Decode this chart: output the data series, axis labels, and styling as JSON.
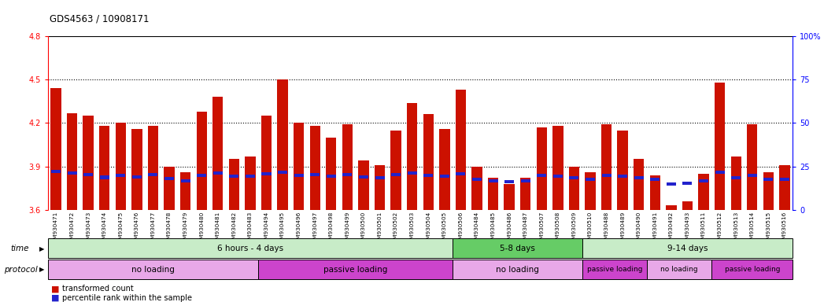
{
  "title": "GDS4563 / 10908171",
  "samples": [
    "GSM930471",
    "GSM930472",
    "GSM930473",
    "GSM930474",
    "GSM930475",
    "GSM930476",
    "GSM930477",
    "GSM930478",
    "GSM930479",
    "GSM930480",
    "GSM930481",
    "GSM930482",
    "GSM930483",
    "GSM930494",
    "GSM930495",
    "GSM930496",
    "GSM930497",
    "GSM930498",
    "GSM930499",
    "GSM930500",
    "GSM930501",
    "GSM930502",
    "GSM930503",
    "GSM930504",
    "GSM930505",
    "GSM930506",
    "GSM930484",
    "GSM930485",
    "GSM930486",
    "GSM930487",
    "GSM930507",
    "GSM930508",
    "GSM930509",
    "GSM930510",
    "GSM930488",
    "GSM930489",
    "GSM930490",
    "GSM930491",
    "GSM930492",
    "GSM930493",
    "GSM930511",
    "GSM930512",
    "GSM930513",
    "GSM930514",
    "GSM930515",
    "GSM930516"
  ],
  "red_values": [
    4.44,
    4.27,
    4.25,
    4.18,
    4.2,
    4.16,
    4.18,
    3.9,
    3.86,
    4.28,
    4.38,
    3.95,
    3.97,
    4.25,
    4.5,
    4.2,
    4.18,
    4.1,
    4.19,
    3.94,
    3.91,
    4.15,
    4.34,
    4.26,
    4.16,
    4.43,
    3.9,
    3.82,
    3.78,
    3.82,
    4.17,
    4.18,
    3.9,
    3.86,
    4.19,
    4.15,
    3.95,
    3.84,
    3.63,
    3.66,
    3.85,
    4.48,
    3.97,
    4.19,
    3.86,
    3.91
  ],
  "blue_values": [
    3.865,
    3.855,
    3.845,
    3.825,
    3.84,
    3.83,
    3.845,
    3.815,
    3.8,
    3.84,
    3.855,
    3.835,
    3.835,
    3.85,
    3.86,
    3.84,
    3.845,
    3.835,
    3.845,
    3.83,
    3.82,
    3.845,
    3.855,
    3.84,
    3.835,
    3.85,
    3.812,
    3.8,
    3.795,
    3.8,
    3.84,
    3.835,
    3.82,
    3.81,
    3.84,
    3.835,
    3.82,
    3.81,
    3.78,
    3.782,
    3.8,
    3.86,
    3.82,
    3.84,
    3.81,
    3.81
  ],
  "y_min": 3.6,
  "y_max": 4.8,
  "y_ticks": [
    3.6,
    3.9,
    4.2,
    4.5,
    4.8
  ],
  "y_right_ticks": [
    0,
    25,
    50,
    75,
    100
  ],
  "dotted_lines": [
    3.9,
    4.2,
    4.5
  ],
  "time_groups": [
    {
      "label": "6 hours - 4 days",
      "start": 0,
      "end": 25,
      "color": "#c8ecc8"
    },
    {
      "label": "5-8 days",
      "start": 25,
      "end": 33,
      "color": "#66cc66"
    },
    {
      "label": "9-14 days",
      "start": 33,
      "end": 46,
      "color": "#c8ecc8"
    }
  ],
  "protocol_groups": [
    {
      "label": "no loading",
      "start": 0,
      "end": 13,
      "color": "#e8a8e8"
    },
    {
      "label": "passive loading",
      "start": 13,
      "end": 25,
      "color": "#cc44cc"
    },
    {
      "label": "no loading",
      "start": 25,
      "end": 33,
      "color": "#e8a8e8"
    },
    {
      "label": "passive loading",
      "start": 33,
      "end": 37,
      "color": "#cc44cc"
    },
    {
      "label": "no loading",
      "start": 37,
      "end": 41,
      "color": "#e8a8e8"
    },
    {
      "label": "passive loading",
      "start": 41,
      "end": 46,
      "color": "#cc44cc"
    }
  ],
  "bar_color": "#cc1100",
  "blue_color": "#2222cc",
  "bar_width": 0.65,
  "blue_bar_height": 0.022,
  "legend_items": [
    {
      "label": "transformed count",
      "color": "#cc1100"
    },
    {
      "label": "percentile rank within the sample",
      "color": "#2222cc"
    }
  ]
}
